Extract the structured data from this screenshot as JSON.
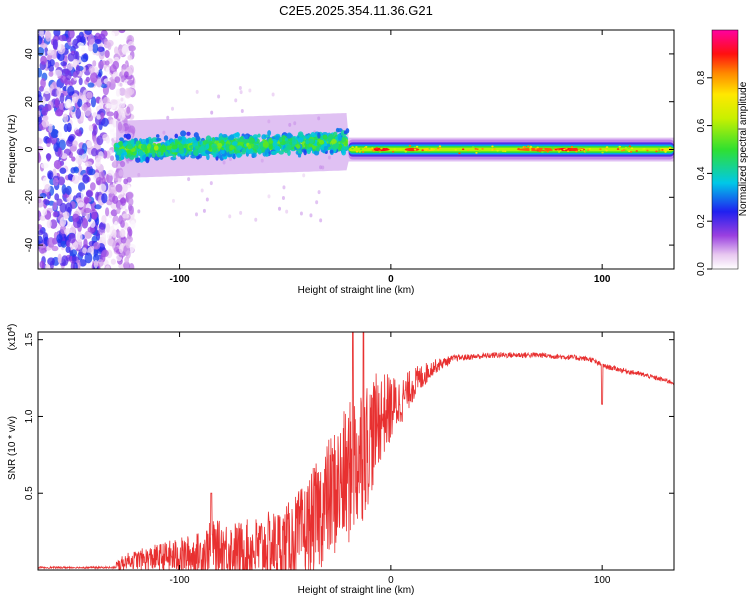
{
  "title": "C2E5.2025.354.11.36.G21",
  "chart_data": [
    {
      "type": "heatmap",
      "name": "spectrogram",
      "xlabel": "Height of straight line (km)",
      "ylabel": "Frequency (Hz)",
      "xlim": [
        -167,
        134
      ],
      "ylim": [
        -50,
        50
      ],
      "x_ticks": [
        -100,
        0,
        100
      ],
      "x_tick_labels": [
        "-100",
        "0",
        "100"
      ],
      "y_ticks": [
        40,
        20,
        0,
        -20,
        -40
      ],
      "y_tick_labels": [
        "40",
        "20",
        "0",
        "-20",
        "-40"
      ],
      "colorbar": {
        "label": "Normalized spectral amplitude",
        "range": [
          0,
          1
        ],
        "ticks": [
          0.0,
          0.2,
          0.4,
          0.6,
          0.8
        ],
        "tick_labels": [
          "0.0",
          "0.2",
          "0.4",
          "0.6",
          "0.8"
        ]
      },
      "features": [
        {
          "x_range": [
            -167,
            -128
          ],
          "freq_spread": 50,
          "amplitude": 0.15,
          "description_values": "noise"
        },
        {
          "x_range": [
            -130,
            -20
          ],
          "freq_center": 0,
          "freq_spread": 6,
          "amplitude": 0.35
        },
        {
          "x_range": [
            -20,
            134
          ],
          "freq_center": 0,
          "freq_spread": 2,
          "amplitude": 0.7
        }
      ]
    },
    {
      "type": "line",
      "name": "snr",
      "xlabel": "Height of straight line (km)",
      "ylabel": "SNR (10 * v/v)",
      "scale_note_prefix": "(x10",
      "scale_note_exp": "4",
      "scale_note_suffix": ")",
      "xlim": [
        -167,
        134
      ],
      "ylim": [
        0,
        1.55
      ],
      "x_ticks": [
        -100,
        0,
        100
      ],
      "x_tick_labels": [
        "-100",
        "0",
        "100"
      ],
      "y_ticks": [
        0.5,
        1.0,
        1.5
      ],
      "y_tick_labels": [
        "0.5",
        "1.0",
        "1.5"
      ],
      "color": "#e83030",
      "envelope": {
        "x": [
          -167,
          -130,
          -125,
          -110,
          -90,
          -85,
          -70,
          -50,
          -40,
          -30,
          -20,
          -15,
          -10,
          -5,
          0,
          5,
          10,
          20,
          30,
          40,
          50,
          60,
          70,
          80,
          90,
          95,
          100,
          110,
          120,
          134
        ],
        "y": [
          0.01,
          0.02,
          0.06,
          0.08,
          0.1,
          0.16,
          0.12,
          0.17,
          0.25,
          0.45,
          0.62,
          0.75,
          0.85,
          1.0,
          1.05,
          1.1,
          1.2,
          1.32,
          1.38,
          1.39,
          1.4,
          1.4,
          1.4,
          1.39,
          1.38,
          1.37,
          1.33,
          1.3,
          1.27,
          1.22
        ]
      },
      "noise_scale": {
        "x": [
          -167,
          -125,
          -90,
          -50,
          -30,
          -15,
          -5,
          5,
          20,
          30,
          134
        ],
        "y": [
          0.005,
          0.05,
          0.15,
          0.25,
          0.4,
          0.5,
          0.3,
          0.15,
          0.05,
          0.02,
          0.015
        ]
      },
      "spikes": [
        {
          "x": -85,
          "y": 0.5
        },
        {
          "x": -18,
          "y": 1.55
        },
        {
          "x": -13,
          "y": 1.55
        },
        {
          "x": 100,
          "y": 1.08
        }
      ]
    }
  ]
}
